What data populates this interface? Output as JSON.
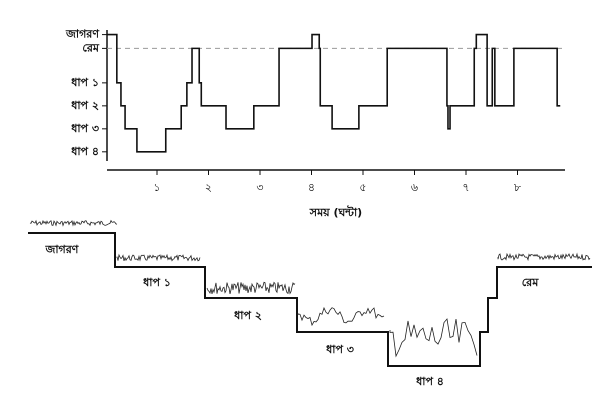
{
  "chart_data": {
    "type": "step",
    "x_label": "সময় (ঘন্টা)",
    "x": [
      0.03,
      0.22,
      0.3,
      0.38,
      0.61,
      1.17,
      1.47,
      1.58,
      1.68,
      1.82,
      1.86,
      2.34,
      2.88,
      3.37,
      4.01,
      4.15,
      4.17,
      4.4,
      4.92,
      5.47,
      6.63,
      6.65,
      6.69,
      7.16,
      7.2,
      7.41,
      7.51,
      7.56,
      7.93,
      8.77,
      8.83
    ],
    "values": [
      5.1,
      3,
      2,
      1,
      0,
      1,
      2,
      3,
      4.5,
      3,
      2,
      1,
      2,
      4.5,
      5.1,
      4.5,
      2,
      1,
      2,
      4.5,
      2,
      1,
      2,
      4.5,
      5.1,
      2,
      4.5,
      2,
      4.5,
      2,
      2
    ],
    "color": "#111111",
    "xlim": [
      0,
      9
    ],
    "ylim": [
      -0.4,
      5.3
    ],
    "xticks": [
      {
        "value": 1,
        "label": "১"
      },
      {
        "value": 2,
        "label": "২"
      },
      {
        "value": 3,
        "label": "৩"
      },
      {
        "value": 4,
        "label": "৪"
      },
      {
        "value": 5,
        "label": "৫"
      },
      {
        "value": 6,
        "label": "৬"
      },
      {
        "value": 7,
        "label": "৭"
      },
      {
        "value": 8,
        "label": "৮"
      }
    ],
    "yticks": [
      {
        "value": 5.1,
        "label": "জাগরণ"
      },
      {
        "value": 4.5,
        "label": "রেম"
      },
      {
        "value": 3,
        "label": "ধাপ ১"
      },
      {
        "value": 2,
        "label": "ধাপ ২"
      },
      {
        "value": 1,
        "label": "ধাপ ৩"
      },
      {
        "value": 0,
        "label": "ধাপ ৪"
      }
    ],
    "reference_line": 4.5
  },
  "stage_diagram": {
    "labels": [
      "জাগরণ",
      "ধাপ ১",
      "ধাপ ২",
      "ধাপ ৩",
      "ধাপ ৪",
      "রেম"
    ]
  }
}
